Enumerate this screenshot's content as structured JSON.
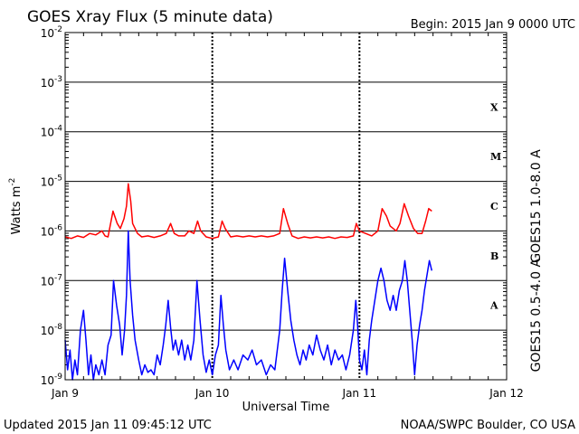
{
  "header": {
    "title": "GOES Xray Flux (5 minute data)",
    "begin": "Begin:  2015 Jan 9 0000 UTC"
  },
  "footer": {
    "updated": "Updated 2015 Jan 11 09:45:12 UTC",
    "source": "NOAA/SWPC Boulder, CO USA"
  },
  "chart_data": {
    "type": "line",
    "title": "GOES Xray Flux (5 minute data)",
    "xlabel": "Universal Time",
    "ylabel": "Watts m-2",
    "ylabel_base": "Watts m",
    "ylabel_exp": "-2",
    "yscale": "log",
    "ylim": [
      1e-09,
      0.01
    ],
    "xlim": [
      0,
      72
    ],
    "x_unit": "hours since 2015 Jan 9 0000 UTC",
    "x_ticks": [
      {
        "x": 0,
        "label": "Jan 9"
      },
      {
        "x": 24,
        "label": "Jan 10"
      },
      {
        "x": 48,
        "label": "Jan 11"
      },
      {
        "x": 72,
        "label": "Jan 12"
      }
    ],
    "y_ticks": [
      {
        "exp": -9,
        "base": "10",
        "sup": "-9"
      },
      {
        "exp": -8,
        "base": "10",
        "sup": "-8"
      },
      {
        "exp": -7,
        "base": "10",
        "sup": "-7"
      },
      {
        "exp": -6,
        "base": "10",
        "sup": "-6"
      },
      {
        "exp": -5,
        "base": "10",
        "sup": "-5"
      },
      {
        "exp": -4,
        "base": "10",
        "sup": "-4"
      },
      {
        "exp": -3,
        "base": "10",
        "sup": "-3"
      },
      {
        "exp": -2,
        "base": "10",
        "sup": "-2"
      }
    ],
    "flare_classes": [
      {
        "label": "A",
        "exp": -7.5
      },
      {
        "label": "B",
        "exp": -6.5
      },
      {
        "label": "C",
        "exp": -5.5
      },
      {
        "label": "M",
        "exp": -4.5
      },
      {
        "label": "X",
        "exp": -3.5
      }
    ],
    "grid": true,
    "series": [
      {
        "name": "GOES15 1.0-8.0 A",
        "color": "#ff0000",
        "points": [
          [
            0,
            -6.12
          ],
          [
            1,
            -6.15
          ],
          [
            2,
            -6.1
          ],
          [
            3,
            -6.13
          ],
          [
            4,
            -6.05
          ],
          [
            5,
            -6.08
          ],
          [
            6,
            -6.0
          ],
          [
            6.5,
            -6.1
          ],
          [
            7,
            -6.12
          ],
          [
            7.8,
            -5.6
          ],
          [
            8.5,
            -5.85
          ],
          [
            9,
            -5.95
          ],
          [
            9.6,
            -5.75
          ],
          [
            10,
            -5.5
          ],
          [
            10.3,
            -5.05
          ],
          [
            10.7,
            -5.4
          ],
          [
            11,
            -5.85
          ],
          [
            11.8,
            -6.05
          ],
          [
            12.5,
            -6.12
          ],
          [
            13.5,
            -6.1
          ],
          [
            14.5,
            -6.13
          ],
          [
            15.5,
            -6.1
          ],
          [
            16.5,
            -6.05
          ],
          [
            17.2,
            -5.85
          ],
          [
            17.8,
            -6.05
          ],
          [
            18.5,
            -6.1
          ],
          [
            19.5,
            -6.1
          ],
          [
            20.2,
            -6.0
          ],
          [
            21,
            -6.05
          ],
          [
            21.6,
            -5.8
          ],
          [
            22.1,
            -6.0
          ],
          [
            23,
            -6.12
          ],
          [
            24,
            -6.15
          ],
          [
            25,
            -6.12
          ],
          [
            25.6,
            -5.8
          ],
          [
            26.1,
            -5.95
          ],
          [
            27,
            -6.12
          ],
          [
            28,
            -6.1
          ],
          [
            29,
            -6.12
          ],
          [
            30,
            -6.1
          ],
          [
            31,
            -6.12
          ],
          [
            32,
            -6.1
          ],
          [
            33,
            -6.12
          ],
          [
            34,
            -6.1
          ],
          [
            35,
            -6.05
          ],
          [
            35.6,
            -5.55
          ],
          [
            36.3,
            -5.85
          ],
          [
            37,
            -6.1
          ],
          [
            38,
            -6.15
          ],
          [
            39,
            -6.12
          ],
          [
            40,
            -6.14
          ],
          [
            41,
            -6.12
          ],
          [
            42,
            -6.14
          ],
          [
            43,
            -6.12
          ],
          [
            44,
            -6.15
          ],
          [
            45,
            -6.12
          ],
          [
            46,
            -6.13
          ],
          [
            47,
            -6.1
          ],
          [
            47.5,
            -5.85
          ],
          [
            48,
            -6.0
          ],
          [
            49,
            -6.05
          ],
          [
            50,
            -6.1
          ],
          [
            51,
            -6.0
          ],
          [
            51.7,
            -5.55
          ],
          [
            52.4,
            -5.7
          ],
          [
            53,
            -5.9
          ],
          [
            54,
            -6.0
          ],
          [
            54.6,
            -5.85
          ],
          [
            55.3,
            -5.45
          ],
          [
            56,
            -5.7
          ],
          [
            56.8,
            -5.95
          ],
          [
            57.5,
            -6.05
          ],
          [
            58.2,
            -6.05
          ],
          [
            58.8,
            -5.8
          ],
          [
            59.3,
            -5.55
          ],
          [
            59.8,
            -5.6
          ]
        ]
      },
      {
        "name": "GOES15 0.5-4.0 A",
        "color": "#0000ff",
        "points": [
          [
            0,
            -8.2
          ],
          [
            0.4,
            -8.8
          ],
          [
            0.8,
            -8.4
          ],
          [
            1.2,
            -9.0
          ],
          [
            1.6,
            -8.6
          ],
          [
            2.0,
            -8.9
          ],
          [
            2.5,
            -8.0
          ],
          [
            3.0,
            -7.6
          ],
          [
            3.4,
            -8.2
          ],
          [
            3.8,
            -8.9
          ],
          [
            4.2,
            -8.5
          ],
          [
            4.6,
            -9.0
          ],
          [
            5.0,
            -8.7
          ],
          [
            5.5,
            -8.9
          ],
          [
            6.0,
            -8.6
          ],
          [
            6.5,
            -8.9
          ],
          [
            7.0,
            -8.3
          ],
          [
            7.5,
            -8.1
          ],
          [
            7.9,
            -7.0
          ],
          [
            8.4,
            -7.5
          ],
          [
            8.9,
            -7.9
          ],
          [
            9.3,
            -8.5
          ],
          [
            9.7,
            -8.0
          ],
          [
            10.0,
            -7.3
          ],
          [
            10.3,
            -6.0
          ],
          [
            10.6,
            -7.0
          ],
          [
            11.0,
            -7.7
          ],
          [
            11.4,
            -8.2
          ],
          [
            12.0,
            -8.6
          ],
          [
            12.5,
            -8.9
          ],
          [
            13.0,
            -8.7
          ],
          [
            13.5,
            -8.85
          ],
          [
            14.0,
            -8.8
          ],
          [
            14.5,
            -8.9
          ],
          [
            15.0,
            -8.5
          ],
          [
            15.5,
            -8.7
          ],
          [
            16.0,
            -8.3
          ],
          [
            16.4,
            -7.9
          ],
          [
            16.8,
            -7.4
          ],
          [
            17.2,
            -7.95
          ],
          [
            17.6,
            -8.4
          ],
          [
            18.0,
            -8.2
          ],
          [
            18.5,
            -8.5
          ],
          [
            19.0,
            -8.2
          ],
          [
            19.5,
            -8.6
          ],
          [
            20.0,
            -8.3
          ],
          [
            20.5,
            -8.6
          ],
          [
            21.0,
            -8.2
          ],
          [
            21.5,
            -7.0
          ],
          [
            22.0,
            -7.8
          ],
          [
            22.5,
            -8.5
          ],
          [
            23.0,
            -8.85
          ],
          [
            23.5,
            -8.6
          ],
          [
            24.0,
            -8.9
          ],
          [
            24.5,
            -8.5
          ],
          [
            25.0,
            -8.3
          ],
          [
            25.4,
            -7.3
          ],
          [
            25.8,
            -7.9
          ],
          [
            26.2,
            -8.4
          ],
          [
            26.8,
            -8.8
          ],
          [
            27.5,
            -8.6
          ],
          [
            28.2,
            -8.8
          ],
          [
            29.0,
            -8.5
          ],
          [
            29.8,
            -8.6
          ],
          [
            30.5,
            -8.4
          ],
          [
            31.2,
            -8.7
          ],
          [
            32.0,
            -8.6
          ],
          [
            32.8,
            -8.9
          ],
          [
            33.5,
            -8.7
          ],
          [
            34.2,
            -8.8
          ],
          [
            35.0,
            -8.0
          ],
          [
            35.4,
            -7.2
          ],
          [
            35.8,
            -6.55
          ],
          [
            36.3,
            -7.2
          ],
          [
            36.8,
            -7.8
          ],
          [
            37.3,
            -8.2
          ],
          [
            37.8,
            -8.5
          ],
          [
            38.3,
            -8.7
          ],
          [
            38.8,
            -8.4
          ],
          [
            39.3,
            -8.6
          ],
          [
            39.8,
            -8.3
          ],
          [
            40.4,
            -8.5
          ],
          [
            41.0,
            -8.1
          ],
          [
            41.6,
            -8.4
          ],
          [
            42.2,
            -8.6
          ],
          [
            42.8,
            -8.3
          ],
          [
            43.4,
            -8.7
          ],
          [
            44.0,
            -8.4
          ],
          [
            44.6,
            -8.6
          ],
          [
            45.2,
            -8.5
          ],
          [
            45.8,
            -8.8
          ],
          [
            46.4,
            -8.5
          ],
          [
            47.0,
            -8.0
          ],
          [
            47.4,
            -7.4
          ],
          [
            47.7,
            -7.9
          ],
          [
            48.0,
            -8.6
          ],
          [
            48.4,
            -8.8
          ],
          [
            48.8,
            -8.4
          ],
          [
            49.2,
            -8.9
          ],
          [
            49.6,
            -8.2
          ],
          [
            50.0,
            -7.8
          ],
          [
            50.5,
            -7.4
          ],
          [
            51.0,
            -7.0
          ],
          [
            51.5,
            -6.75
          ],
          [
            52.0,
            -7.0
          ],
          [
            52.5,
            -7.4
          ],
          [
            53.0,
            -7.6
          ],
          [
            53.5,
            -7.3
          ],
          [
            54.0,
            -7.6
          ],
          [
            54.5,
            -7.2
          ],
          [
            55.0,
            -7.0
          ],
          [
            55.4,
            -6.6
          ],
          [
            55.8,
            -7.0
          ],
          [
            56.2,
            -7.6
          ],
          [
            56.6,
            -8.2
          ],
          [
            57.0,
            -8.9
          ],
          [
            57.4,
            -8.3
          ],
          [
            57.8,
            -7.9
          ],
          [
            58.2,
            -7.6
          ],
          [
            58.6,
            -7.2
          ],
          [
            59.0,
            -6.9
          ],
          [
            59.4,
            -6.6
          ],
          [
            59.8,
            -6.8
          ]
        ]
      }
    ]
  }
}
